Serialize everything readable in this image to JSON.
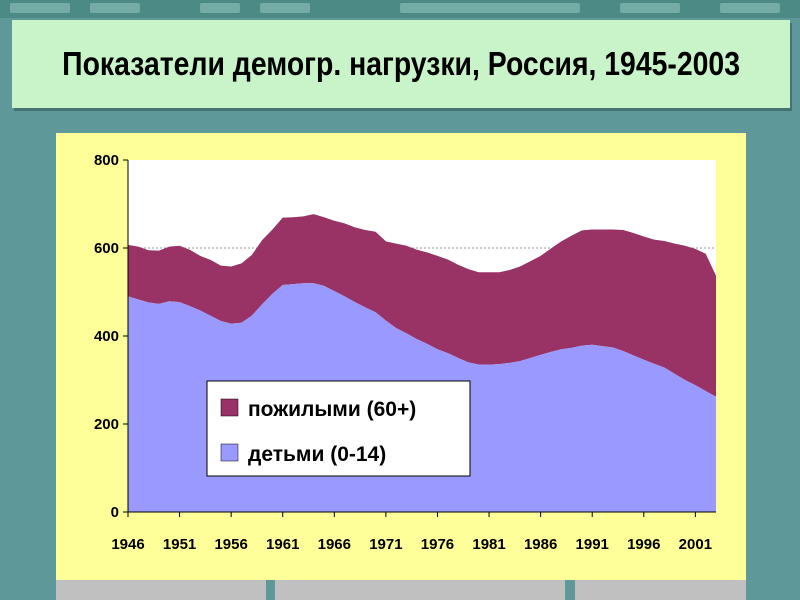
{
  "title": "Показатели демогр. нагрузки, Россия, 1945-2003",
  "chart_data": {
    "type": "area",
    "stacked": true,
    "title": "",
    "xlabel": "",
    "ylabel": "",
    "ylim": [
      0,
      800
    ],
    "yticks": [
      "0",
      "200",
      "400",
      "600",
      "800"
    ],
    "xticks": [
      "1946",
      "1951",
      "1956",
      "1961",
      "1966",
      "1971",
      "1976",
      "1981",
      "1986",
      "1991",
      "1996",
      "2001"
    ],
    "gridline_at": 600,
    "legend_placement": "inside-lower-center",
    "x": [
      1946,
      1947,
      1948,
      1949,
      1950,
      1951,
      1952,
      1953,
      1954,
      1955,
      1956,
      1957,
      1958,
      1959,
      1960,
      1961,
      1962,
      1963,
      1964,
      1965,
      1966,
      1967,
      1968,
      1969,
      1970,
      1971,
      1972,
      1973,
      1974,
      1975,
      1976,
      1977,
      1978,
      1979,
      1980,
      1981,
      1982,
      1983,
      1984,
      1985,
      1986,
      1987,
      1988,
      1989,
      1990,
      1991,
      1992,
      1993,
      1994,
      1995,
      1996,
      1997,
      1998,
      1999,
      2000,
      2001,
      2002,
      2003
    ],
    "series": [
      {
        "name": "детьми (0-14)",
        "color": "#9999ff",
        "values": [
          490,
          483,
          476,
          473,
          479,
          477,
          468,
          458,
          446,
          434,
          428,
          430,
          446,
          472,
          496,
          516,
          518,
          520,
          520,
          514,
          502,
          490,
          477,
          465,
          454,
          435,
          418,
          406,
          393,
          382,
          370,
          361,
          350,
          340,
          335,
          335,
          336,
          339,
          343,
          350,
          357,
          364,
          370,
          373,
          378,
          380,
          377,
          374,
          366,
          356,
          346,
          337,
          328,
          314,
          300,
          288,
          275,
          262
        ],
        "labels": [
          "детьми (0-14)"
        ]
      },
      {
        "name": "пожилыми (60+)",
        "color": "#993366",
        "values": [
          117,
          120,
          119,
          121,
          124,
          128,
          128,
          124,
          127,
          126,
          130,
          135,
          138,
          146,
          146,
          153,
          152,
          152,
          157,
          156,
          160,
          166,
          170,
          176,
          183,
          180,
          192,
          199,
          203,
          208,
          212,
          213,
          212,
          212,
          210,
          210,
          209,
          211,
          215,
          220,
          225,
          235,
          245,
          255,
          262,
          262,
          265,
          268,
          275,
          278,
          280,
          282,
          288,
          296,
          305,
          310,
          312,
          275
        ]
      }
    ],
    "legend": [
      "пожилыми (60+)",
      "детьми (0-14)"
    ],
    "colors": {
      "plot_background": "#ffffff",
      "panel_background": "#ffff99",
      "slide_background": "#5f9898",
      "title_background": "#c9f3c9"
    }
  }
}
